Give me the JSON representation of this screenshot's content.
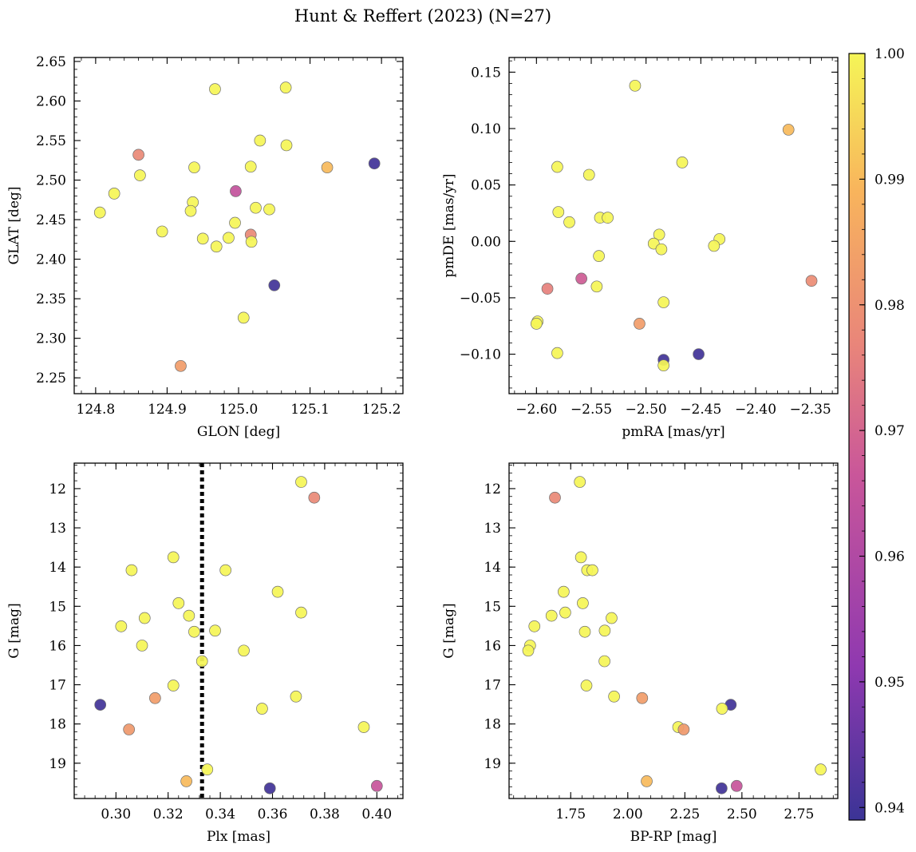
{
  "figure_title": "Hunt & Reffert (2023) (N=27)",
  "colormap": {
    "name": "plasma",
    "min": 0.939,
    "max": 1.0,
    "ticks": [
      0.94,
      0.95,
      0.96,
      0.97,
      0.98,
      0.99,
      1.0
    ],
    "tick_labels": [
      "0.94",
      "0.95",
      "0.96",
      "0.97",
      "0.98",
      "0.99",
      "1.00"
    ],
    "colors": [
      "#3b3496",
      "#8f39b0",
      "#c9569a",
      "#e9857a",
      "#f8b45c",
      "#f5f557"
    ]
  },
  "chart_data": [
    {
      "type": "scatter",
      "id": "glon-glat",
      "xlabel": "GLON [deg]",
      "ylabel": "GLAT [deg]",
      "xlim": [
        124.77,
        125.23
      ],
      "ylim": [
        2.23,
        2.655
      ],
      "xticks": [
        124.8,
        124.9,
        125.0,
        125.1,
        125.2
      ],
      "xtick_labels": [
        "124.8",
        "124.9",
        "125.0",
        "125.1",
        "125.2"
      ],
      "yticks": [
        2.25,
        2.3,
        2.35,
        2.4,
        2.45,
        2.5,
        2.55,
        2.6,
        2.65
      ],
      "ytick_labels": [
        "2.25",
        "2.30",
        "2.35",
        "2.40",
        "2.45",
        "2.50",
        "2.55",
        "2.60",
        "2.65"
      ],
      "points": [
        {
          "x": 124.967,
          "y": 2.615,
          "c": 1.0
        },
        {
          "x": 125.066,
          "y": 2.617,
          "c": 1.0
        },
        {
          "x": 125.03,
          "y": 2.55,
          "c": 1.0
        },
        {
          "x": 125.067,
          "y": 2.544,
          "c": 1.0
        },
        {
          "x": 124.86,
          "y": 2.532,
          "c": 0.978
        },
        {
          "x": 124.938,
          "y": 2.516,
          "c": 1.0
        },
        {
          "x": 125.017,
          "y": 2.517,
          "c": 1.0
        },
        {
          "x": 125.124,
          "y": 2.516,
          "c": 0.99
        },
        {
          "x": 125.19,
          "y": 2.521,
          "c": 0.94
        },
        {
          "x": 124.862,
          "y": 2.506,
          "c": 1.0
        },
        {
          "x": 124.996,
          "y": 2.486,
          "c": 0.965
        },
        {
          "x": 124.826,
          "y": 2.483,
          "c": 1.0
        },
        {
          "x": 124.936,
          "y": 2.472,
          "c": 1.0
        },
        {
          "x": 125.024,
          "y": 2.465,
          "c": 1.0
        },
        {
          "x": 125.043,
          "y": 2.463,
          "c": 1.0
        },
        {
          "x": 124.806,
          "y": 2.459,
          "c": 1.0
        },
        {
          "x": 124.933,
          "y": 2.461,
          "c": 1.0
        },
        {
          "x": 124.995,
          "y": 2.446,
          "c": 1.0
        },
        {
          "x": 124.893,
          "y": 2.435,
          "c": 1.0
        },
        {
          "x": 124.95,
          "y": 2.426,
          "c": 1.0
        },
        {
          "x": 124.986,
          "y": 2.427,
          "c": 1.0
        },
        {
          "x": 125.017,
          "y": 2.431,
          "c": 0.978
        },
        {
          "x": 125.018,
          "y": 2.422,
          "c": 1.0
        },
        {
          "x": 124.969,
          "y": 2.416,
          "c": 1.0
        },
        {
          "x": 125.05,
          "y": 2.367,
          "c": 0.94
        },
        {
          "x": 125.007,
          "y": 2.326,
          "c": 1.0
        },
        {
          "x": 124.919,
          "y": 2.265,
          "c": 0.983
        }
      ]
    },
    {
      "type": "scatter",
      "id": "pm",
      "xlabel": "pmRA [mas/yr]",
      "ylabel": "pmDE [mas/yr]",
      "xlim": [
        -2.625,
        -2.325
      ],
      "ylim": [
        -0.135,
        0.163
      ],
      "xticks": [
        -2.6,
        -2.55,
        -2.5,
        -2.45,
        -2.4,
        -2.35
      ],
      "xtick_labels": [
        "−2.60",
        "−2.55",
        "−2.50",
        "−2.45",
        "−2.40",
        "−2.35"
      ],
      "yticks": [
        -0.1,
        -0.05,
        0.0,
        0.05,
        0.1,
        0.15
      ],
      "ytick_labels": [
        "−0.10",
        "−0.05",
        "0.00",
        "0.05",
        "0.10",
        "0.15"
      ],
      "points": [
        {
          "x": -2.51,
          "y": 0.138,
          "c": 1.0
        },
        {
          "x": -2.37,
          "y": 0.099,
          "c": 0.99
        },
        {
          "x": -2.467,
          "y": 0.07,
          "c": 1.0
        },
        {
          "x": -2.581,
          "y": 0.066,
          "c": 1.0
        },
        {
          "x": -2.552,
          "y": 0.059,
          "c": 1.0
        },
        {
          "x": -2.58,
          "y": 0.026,
          "c": 1.0
        },
        {
          "x": -2.542,
          "y": 0.021,
          "c": 1.0
        },
        {
          "x": -2.535,
          "y": 0.021,
          "c": 1.0
        },
        {
          "x": -2.57,
          "y": 0.017,
          "c": 1.0
        },
        {
          "x": -2.488,
          "y": 0.006,
          "c": 1.0
        },
        {
          "x": -2.433,
          "y": 0.002,
          "c": 1.0
        },
        {
          "x": -2.493,
          "y": -0.002,
          "c": 1.0
        },
        {
          "x": -2.438,
          "y": -0.004,
          "c": 1.0
        },
        {
          "x": -2.486,
          "y": -0.007,
          "c": 1.0
        },
        {
          "x": -2.543,
          "y": -0.013,
          "c": 1.0
        },
        {
          "x": -2.559,
          "y": -0.033,
          "c": 0.968
        },
        {
          "x": -2.349,
          "y": -0.035,
          "c": 0.979
        },
        {
          "x": -2.545,
          "y": -0.04,
          "c": 1.0
        },
        {
          "x": -2.59,
          "y": -0.042,
          "c": 0.976
        },
        {
          "x": -2.484,
          "y": -0.054,
          "c": 1.0
        },
        {
          "x": -2.599,
          "y": -0.071,
          "c": 1.0
        },
        {
          "x": -2.6,
          "y": -0.073,
          "c": 1.0
        },
        {
          "x": -2.506,
          "y": -0.073,
          "c": 0.983
        },
        {
          "x": -2.581,
          "y": -0.099,
          "c": 1.0
        },
        {
          "x": -2.452,
          "y": -0.1,
          "c": 0.94
        },
        {
          "x": -2.484,
          "y": -0.105,
          "c": 0.94
        },
        {
          "x": -2.484,
          "y": -0.11,
          "c": 1.0
        }
      ]
    },
    {
      "type": "scatter",
      "id": "plx-g",
      "xlabel": "Plx [mas]",
      "ylabel": "G [mag]",
      "xlim": [
        0.284,
        0.41
      ],
      "ylim": [
        19.9,
        11.35
      ],
      "xticks": [
        0.3,
        0.32,
        0.34,
        0.36,
        0.38,
        0.4
      ],
      "xtick_labels": [
        "0.30",
        "0.32",
        "0.34",
        "0.36",
        "0.38",
        "0.40"
      ],
      "yticks": [
        12,
        13,
        14,
        15,
        16,
        17,
        18,
        19
      ],
      "ytick_labels": [
        "12",
        "13",
        "14",
        "15",
        "16",
        "17",
        "18",
        "19"
      ],
      "vline": 0.333,
      "points": [
        {
          "x": 0.371,
          "y": 11.83,
          "c": 1.0
        },
        {
          "x": 0.376,
          "y": 12.23,
          "c": 0.978
        },
        {
          "x": 0.322,
          "y": 13.75,
          "c": 1.0
        },
        {
          "x": 0.306,
          "y": 14.08,
          "c": 1.0
        },
        {
          "x": 0.342,
          "y": 14.08,
          "c": 1.0
        },
        {
          "x": 0.362,
          "y": 14.63,
          "c": 1.0
        },
        {
          "x": 0.324,
          "y": 14.92,
          "c": 1.0
        },
        {
          "x": 0.371,
          "y": 15.16,
          "c": 1.0
        },
        {
          "x": 0.328,
          "y": 15.24,
          "c": 1.0
        },
        {
          "x": 0.311,
          "y": 15.3,
          "c": 1.0
        },
        {
          "x": 0.302,
          "y": 15.51,
          "c": 1.0
        },
        {
          "x": 0.338,
          "y": 15.62,
          "c": 1.0
        },
        {
          "x": 0.33,
          "y": 15.65,
          "c": 1.0
        },
        {
          "x": 0.31,
          "y": 16.0,
          "c": 1.0
        },
        {
          "x": 0.349,
          "y": 16.13,
          "c": 1.0
        },
        {
          "x": 0.333,
          "y": 16.4,
          "c": 1.0
        },
        {
          "x": 0.322,
          "y": 17.02,
          "c": 1.0
        },
        {
          "x": 0.369,
          "y": 17.3,
          "c": 1.0
        },
        {
          "x": 0.315,
          "y": 17.34,
          "c": 0.983
        },
        {
          "x": 0.294,
          "y": 17.51,
          "c": 0.94
        },
        {
          "x": 0.356,
          "y": 17.61,
          "c": 1.0
        },
        {
          "x": 0.395,
          "y": 18.08,
          "c": 1.0
        },
        {
          "x": 0.305,
          "y": 18.14,
          "c": 0.982
        },
        {
          "x": 0.335,
          "y": 19.16,
          "c": 1.0
        },
        {
          "x": 0.327,
          "y": 19.46,
          "c": 0.99
        },
        {
          "x": 0.4,
          "y": 19.58,
          "c": 0.966
        },
        {
          "x": 0.359,
          "y": 19.64,
          "c": 0.94
        }
      ]
    },
    {
      "type": "scatter",
      "id": "cmd",
      "xlabel": "BP-RP [mag]",
      "ylabel": "G [mag]",
      "xlim": [
        1.48,
        2.92
      ],
      "ylim": [
        19.9,
        11.35
      ],
      "xticks": [
        1.75,
        2.0,
        2.25,
        2.5,
        2.75
      ],
      "xtick_labels": [
        "1.75",
        "2.00",
        "2.25",
        "2.50",
        "2.75"
      ],
      "yticks": [
        12,
        13,
        14,
        15,
        16,
        17,
        18,
        19
      ],
      "ytick_labels": [
        "12",
        "13",
        "14",
        "15",
        "16",
        "17",
        "18",
        "19"
      ],
      "points": [
        {
          "x": 1.79,
          "y": 11.83,
          "c": 1.0
        },
        {
          "x": 1.681,
          "y": 12.23,
          "c": 0.978
        },
        {
          "x": 1.795,
          "y": 13.75,
          "c": 1.0
        },
        {
          "x": 1.822,
          "y": 14.08,
          "c": 1.0
        },
        {
          "x": 1.845,
          "y": 14.08,
          "c": 1.0
        },
        {
          "x": 1.719,
          "y": 14.63,
          "c": 1.0
        },
        {
          "x": 1.803,
          "y": 14.92,
          "c": 1.0
        },
        {
          "x": 1.726,
          "y": 15.16,
          "c": 1.0
        },
        {
          "x": 1.666,
          "y": 15.24,
          "c": 1.0
        },
        {
          "x": 1.929,
          "y": 15.3,
          "c": 1.0
        },
        {
          "x": 1.591,
          "y": 15.51,
          "c": 1.0
        },
        {
          "x": 1.899,
          "y": 15.62,
          "c": 1.0
        },
        {
          "x": 1.812,
          "y": 15.65,
          "c": 1.0
        },
        {
          "x": 1.572,
          "y": 16.0,
          "c": 1.0
        },
        {
          "x": 1.564,
          "y": 16.13,
          "c": 1.0
        },
        {
          "x": 1.898,
          "y": 16.4,
          "c": 1.0
        },
        {
          "x": 1.819,
          "y": 17.02,
          "c": 1.0
        },
        {
          "x": 1.94,
          "y": 17.3,
          "c": 1.0
        },
        {
          "x": 2.063,
          "y": 17.34,
          "c": 0.983
        },
        {
          "x": 2.451,
          "y": 17.51,
          "c": 0.94
        },
        {
          "x": 2.413,
          "y": 17.61,
          "c": 1.0
        },
        {
          "x": 2.221,
          "y": 18.08,
          "c": 1.0
        },
        {
          "x": 2.245,
          "y": 18.14,
          "c": 0.982
        },
        {
          "x": 2.845,
          "y": 19.16,
          "c": 1.0
        },
        {
          "x": 2.083,
          "y": 19.46,
          "c": 0.99
        },
        {
          "x": 2.477,
          "y": 19.58,
          "c": 0.966
        },
        {
          "x": 2.411,
          "y": 19.64,
          "c": 0.94
        }
      ]
    }
  ]
}
